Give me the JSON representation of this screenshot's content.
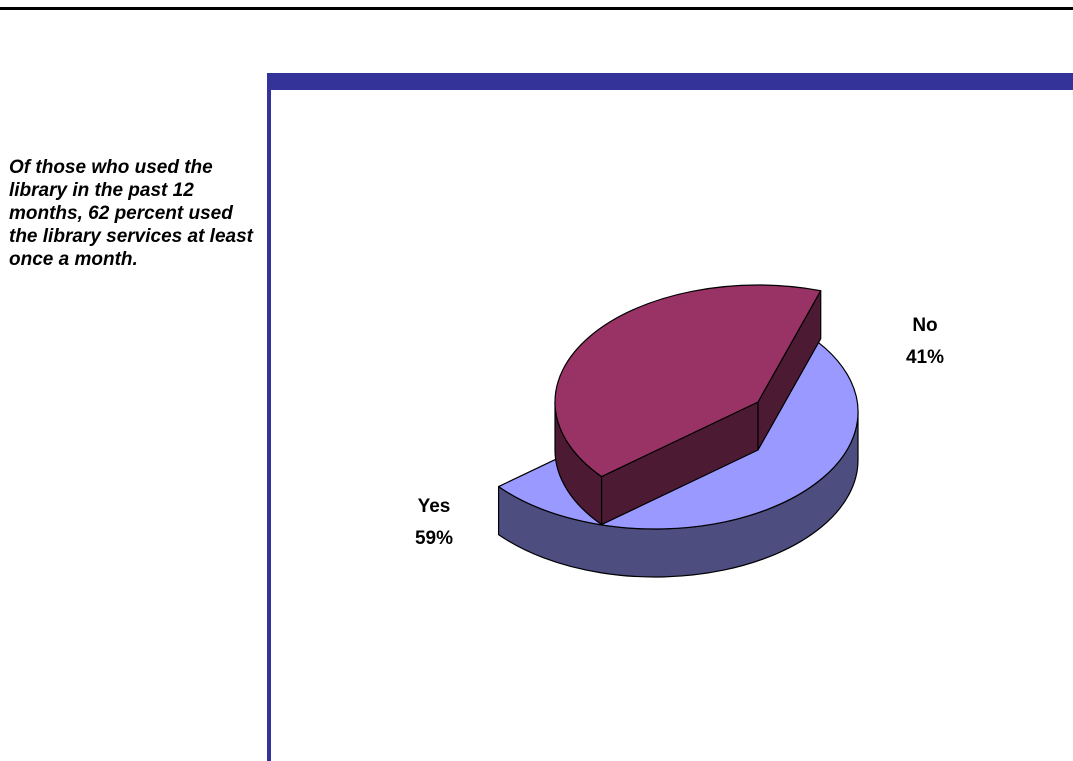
{
  "note_text": "Of those who used the library in the past 12 months, 62 percent used the library services at least once a month.",
  "colors": {
    "panel_accent": "#333399",
    "yes_top": "#9999ff",
    "yes_side": "#4d4d80",
    "no_top": "#993366",
    "no_side": "#4d1a33"
  },
  "chart_data": {
    "type": "pie",
    "three_d": true,
    "slices": [
      {
        "label": "Yes",
        "value": 59,
        "value_label": "59%"
      },
      {
        "label": "No",
        "value": 41,
        "value_label": "41%"
      }
    ],
    "exploded": true,
    "title": "",
    "legend": "none"
  }
}
